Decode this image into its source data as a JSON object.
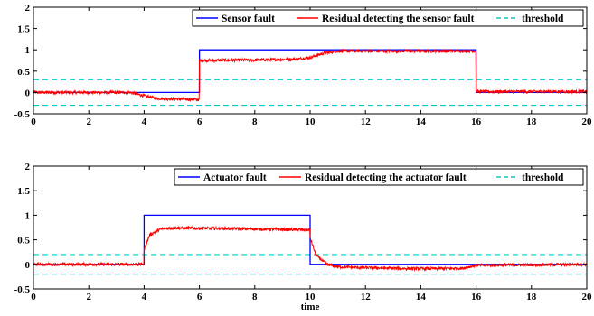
{
  "chart_data": [
    {
      "type": "line",
      "xlim": [
        0,
        20
      ],
      "ylim": [
        -0.5,
        2
      ],
      "xticks": [
        "0",
        "2",
        "4",
        "6",
        "8",
        "10",
        "12",
        "14",
        "16",
        "18",
        "20"
      ],
      "yticks": [
        "-0.5",
        "0",
        "0.5",
        "1",
        "1.5",
        "2"
      ],
      "xlabel": "",
      "legend_position": "top-right",
      "grid": false,
      "fault": {
        "name": "Sensor fault",
        "color": "#0000ff",
        "x": [
          0,
          6,
          6,
          16,
          16,
          20
        ],
        "y": [
          0,
          0,
          1,
          1,
          0,
          0
        ]
      },
      "residual": {
        "name": "Residual detecting the sensor fault",
        "color": "#ff0000",
        "profile_x": [
          0,
          3.5,
          4,
          4.5,
          5,
          5.99,
          6,
          8,
          9.5,
          10,
          10.5,
          11,
          15.99,
          16,
          20
        ],
        "profile_y": [
          0,
          0,
          -0.08,
          -0.14,
          -0.15,
          -0.17,
          0.75,
          0.76,
          0.78,
          0.82,
          0.92,
          0.97,
          0.97,
          0.02,
          0.02
        ],
        "noise_amplitude": 0.035
      },
      "threshold": {
        "name": "threshold",
        "color": "#00cccc",
        "values": [
          0.3,
          -0.3
        ]
      }
    },
    {
      "type": "line",
      "xlim": [
        0,
        20
      ],
      "ylim": [
        -0.5,
        2
      ],
      "xticks": [
        "0",
        "2",
        "4",
        "6",
        "8",
        "10",
        "12",
        "14",
        "16",
        "18",
        "20"
      ],
      "yticks": [
        "-0.5",
        "0",
        "0.5",
        "1",
        "1.5",
        "2"
      ],
      "xlabel": "time",
      "legend_position": "top-right",
      "grid": false,
      "fault": {
        "name": "Actuator fault",
        "color": "#0000ff",
        "x": [
          0,
          4,
          4,
          10,
          10,
          16,
          16,
          20
        ],
        "y": [
          0,
          0,
          1,
          1,
          0,
          0,
          0,
          0
        ]
      },
      "residual": {
        "name": "Residual detecting the actuator fault",
        "color": "#ff0000",
        "profile_x": [
          0,
          3.99,
          4.0,
          4.2,
          4.6,
          5,
          7,
          9.99,
          10.0,
          10.2,
          10.6,
          11,
          12,
          14,
          15.5,
          16,
          20
        ],
        "profile_y": [
          0,
          0,
          0.3,
          0.6,
          0.72,
          0.74,
          0.73,
          0.7,
          0.55,
          0.2,
          0.0,
          -0.05,
          -0.07,
          -0.09,
          -0.08,
          -0.02,
          0.0
        ],
        "noise_amplitude": 0.03
      },
      "threshold": {
        "name": "threshold",
        "color": "#00cccc",
        "values": [
          0.2,
          -0.2
        ]
      }
    }
  ]
}
